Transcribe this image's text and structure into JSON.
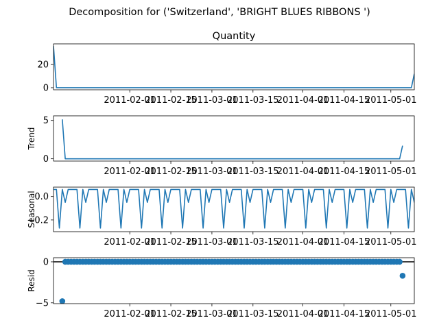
{
  "figure": {
    "suptitle": "Decomposition for ('Switzerland', 'BRIGHT BLUES RIBBONS ')"
  },
  "chart_data": [
    {
      "type": "line",
      "panel": "observed",
      "title": "Quantity",
      "xlabel": "",
      "ylabel": "",
      "x_start": "2011-01-06",
      "x_end": "2011-05-09",
      "x_step_days": 1,
      "xlim": [
        "2011-01-06",
        "2011-05-09"
      ],
      "xticks": [
        "2011-02-01",
        "2011-02-15",
        "2011-03-01",
        "2011-03-15",
        "2011-04-01",
        "2011-04-15",
        "2011-05-01"
      ],
      "ylim": [
        -1.8,
        37.8
      ],
      "yticks": [
        0,
        20
      ],
      "series": [
        {
          "color": "#1f77b4",
          "values": [
            36,
            0,
            0,
            0,
            0,
            0,
            0,
            0,
            0,
            0,
            0,
            0,
            0,
            0,
            0,
            0,
            0,
            0,
            0,
            0,
            0,
            0,
            0,
            0,
            0,
            0,
            0,
            0,
            0,
            0,
            0,
            0,
            0,
            0,
            0,
            0,
            0,
            0,
            0,
            0,
            0,
            0,
            0,
            0,
            0,
            0,
            0,
            0,
            0,
            0,
            0,
            0,
            0,
            0,
            0,
            0,
            0,
            0,
            0,
            0,
            0,
            0,
            0,
            0,
            0,
            0,
            0,
            0,
            0,
            0,
            0,
            0,
            0,
            0,
            0,
            0,
            0,
            0,
            0,
            0,
            0,
            0,
            0,
            0,
            0,
            0,
            0,
            0,
            0,
            0,
            0,
            0,
            0,
            0,
            0,
            0,
            0,
            0,
            0,
            0,
            0,
            0,
            0,
            0,
            0,
            0,
            0,
            0,
            0,
            0,
            0,
            0,
            0,
            0,
            0,
            0,
            0,
            0,
            0,
            0,
            0,
            0,
            0,
            12
          ]
        }
      ]
    },
    {
      "type": "line",
      "panel": "trend",
      "title": "",
      "xlabel": "",
      "ylabel": "Trend",
      "x_start": "2011-01-09",
      "xlim": [
        "2011-01-06",
        "2011-05-09"
      ],
      "xticks": [
        "2011-02-01",
        "2011-02-15",
        "2011-03-01",
        "2011-03-15",
        "2011-04-01",
        "2011-04-15",
        "2011-05-01"
      ],
      "ylim": [
        -0.3,
        5.6
      ],
      "yticks": [
        0,
        5
      ],
      "series": [
        {
          "color": "#1f77b4",
          "values": [
            5.14,
            0,
            0,
            0,
            0,
            0,
            0,
            0,
            0,
            0,
            0,
            0,
            0,
            0,
            0,
            0,
            0,
            0,
            0,
            0,
            0,
            0,
            0,
            0,
            0,
            0,
            0,
            0,
            0,
            0,
            0,
            0,
            0,
            0,
            0,
            0,
            0,
            0,
            0,
            0,
            0,
            0,
            0,
            0,
            0,
            0,
            0,
            0,
            0,
            0,
            0,
            0,
            0,
            0,
            0,
            0,
            0,
            0,
            0,
            0,
            0,
            0,
            0,
            0,
            0,
            0,
            0,
            0,
            0,
            0,
            0,
            0,
            0,
            0,
            0,
            0,
            0,
            0,
            0,
            0,
            0,
            0,
            0,
            0,
            0,
            0,
            0,
            0,
            0,
            0,
            0,
            0,
            0,
            0,
            0,
            0,
            0,
            0,
            0,
            0,
            0,
            0,
            0,
            0,
            0,
            0,
            0,
            0,
            0,
            0,
            0,
            0,
            0,
            0,
            0,
            0,
            1.71
          ]
        }
      ]
    },
    {
      "type": "line",
      "panel": "seasonal",
      "title": "",
      "xlabel": "",
      "ylabel": "Seasonal",
      "x_start": "2011-01-06",
      "xlim": [
        "2011-01-06",
        "2011-05-09"
      ],
      "xticks": [
        "2011-02-01",
        "2011-02-15",
        "2011-03-01",
        "2011-03-15",
        "2011-04-01",
        "2011-04-15",
        "2011-05-01"
      ],
      "ylim": [
        -0.3,
        0.08
      ],
      "yticks": [
        0.0,
        -0.2
      ],
      "ytick_labels": [
        "0.0",
        "−0.2"
      ],
      "period_pattern": [
        0.06,
        0.06,
        -0.27,
        0.06,
        -0.05,
        0.06,
        0.06,
        0.06,
        0.06,
        0.06,
        0.06,
        0.06,
        0.06,
        0.06
      ],
      "series": [
        {
          "color": "#1f77b4",
          "values": [
            0.06,
            0.06,
            -0.27,
            0.06,
            -0.05,
            0.06,
            0.06,
            0.06,
            0.06,
            -0.27,
            0.06,
            -0.05,
            0.06,
            0.06,
            0.06,
            0.06,
            -0.27,
            0.06,
            -0.05,
            0.06,
            0.06,
            0.06,
            0.06,
            -0.27,
            0.06,
            -0.05,
            0.06,
            0.06,
            0.06,
            0.06,
            -0.27,
            0.06,
            -0.05,
            0.06,
            0.06,
            0.06,
            0.06,
            -0.27,
            0.06,
            -0.05,
            0.06,
            0.06,
            0.06,
            0.06,
            -0.27,
            0.06,
            -0.05,
            0.06,
            0.06,
            0.06,
            0.06,
            -0.27,
            0.06,
            -0.05,
            0.06,
            0.06,
            0.06,
            0.06,
            -0.27,
            0.06,
            -0.05,
            0.06,
            0.06,
            0.06,
            0.06,
            -0.27,
            0.06,
            -0.05,
            0.06,
            0.06,
            0.06,
            0.06,
            -0.27,
            0.06,
            -0.05,
            0.06,
            0.06,
            0.06,
            0.06,
            -0.27,
            0.06,
            -0.05,
            0.06,
            0.06,
            0.06,
            0.06,
            -0.27,
            0.06,
            -0.05,
            0.06,
            0.06,
            0.06,
            0.06,
            -0.27,
            0.06,
            -0.05,
            0.06,
            0.06,
            0.06,
            0.06,
            -0.27,
            0.06,
            -0.05,
            0.06,
            0.06,
            0.06,
            0.06,
            -0.27,
            0.06,
            -0.05,
            0.06,
            0.06,
            0.06,
            0.06,
            -0.27,
            0.06,
            -0.05,
            0.06,
            0.06,
            0.06,
            0.06,
            -0.27,
            0.06,
            -0.05,
            0.06,
            0.06
          ]
        }
      ]
    },
    {
      "type": "scatter",
      "panel": "resid",
      "title": "",
      "xlabel": "",
      "ylabel": "Resid",
      "x_start": "2011-01-09",
      "xlim": [
        "2011-01-06",
        "2011-05-09"
      ],
      "xticks": [
        "2011-02-01",
        "2011-02-15",
        "2011-03-01",
        "2011-03-15",
        "2011-04-01",
        "2011-04-15",
        "2011-05-01"
      ],
      "ylim": [
        -5.1,
        0.5
      ],
      "yticks": [
        0,
        -5
      ],
      "ytick_labels": [
        "0",
        "−5"
      ],
      "zero_line": true,
      "series": [
        {
          "color": "#1f77b4",
          "values": [
            -4.8,
            0,
            0,
            0,
            0,
            0,
            0,
            0,
            0,
            0,
            0,
            0,
            0,
            0,
            0,
            0,
            0,
            0,
            0,
            0,
            0,
            0,
            0,
            0,
            0,
            0,
            0,
            0,
            0,
            0,
            0,
            0,
            0,
            0,
            0,
            0,
            0,
            0,
            0,
            0,
            0,
            0,
            0,
            0,
            0,
            0,
            0,
            0,
            0,
            0,
            0,
            0,
            0,
            0,
            0,
            0,
            0,
            0,
            0,
            0,
            0,
            0,
            0,
            0,
            0,
            0,
            0,
            0,
            0,
            0,
            0,
            0,
            0,
            0,
            0,
            0,
            0,
            0,
            0,
            0,
            0,
            0,
            0,
            0,
            0,
            0,
            0,
            0,
            0,
            0,
            0,
            0,
            0,
            0,
            0,
            0,
            0,
            0,
            0,
            0,
            0,
            0,
            0,
            0,
            0,
            0,
            0,
            0,
            0,
            0,
            0,
            0,
            0,
            0,
            0,
            0,
            -1.7
          ]
        }
      ]
    }
  ]
}
